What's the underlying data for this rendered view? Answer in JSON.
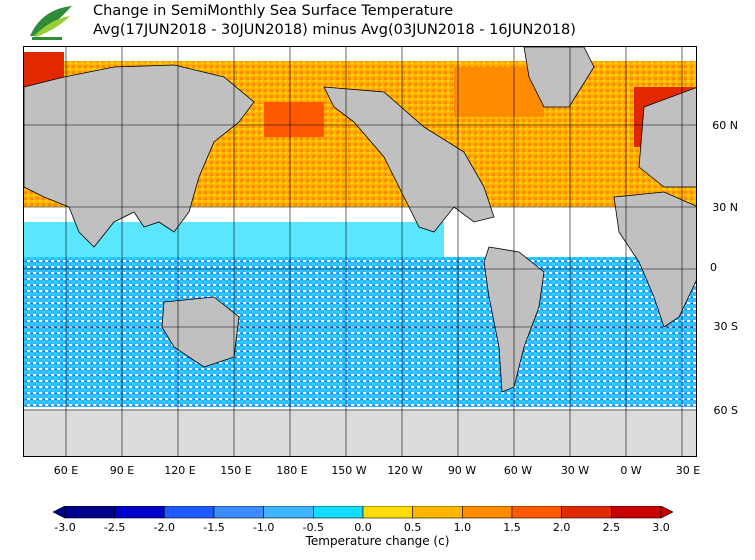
{
  "header": {
    "title": "Change in SemiMonthly Sea Surface Temperature",
    "subtitle": "Avg(17JUN2018 - 30JUN2018) minus Avg(03JUN2018 - 16JUN2018)",
    "logo_icon": "leaf-logo-icon",
    "logo_colors": [
      "#2e8b3a",
      "#9acd32"
    ]
  },
  "map": {
    "land_color": "#c0c0c0",
    "ice_color": "#dcdcdc",
    "grid": true,
    "lat_labels": [
      "60 N",
      "30 N",
      "0",
      "30 S",
      "60 S"
    ],
    "lon_labels": [
      "60 E",
      "90 E",
      "120 E",
      "150 E",
      "180 E",
      "150 W",
      "120 W",
      "90 W",
      "60 W",
      "30 W",
      "0 W",
      "30 E"
    ]
  },
  "legend": {
    "ticks": [
      "-3.0",
      "-2.5",
      "-2.0",
      "-1.5",
      "-1.0",
      "-0.5",
      "0.0",
      "0.5",
      "1.0",
      "1.5",
      "2.0",
      "2.5",
      "3.0"
    ],
    "colors": [
      "#00008b",
      "#0000cd",
      "#1e5aff",
      "#3c8cff",
      "#3cb4ff",
      "#14dcff",
      "#ffffff",
      "#ffdc00",
      "#ffb400",
      "#ff8c00",
      "#ff5a00",
      "#e12800",
      "#c80000"
    ],
    "title": "Temperature change (c)"
  }
}
